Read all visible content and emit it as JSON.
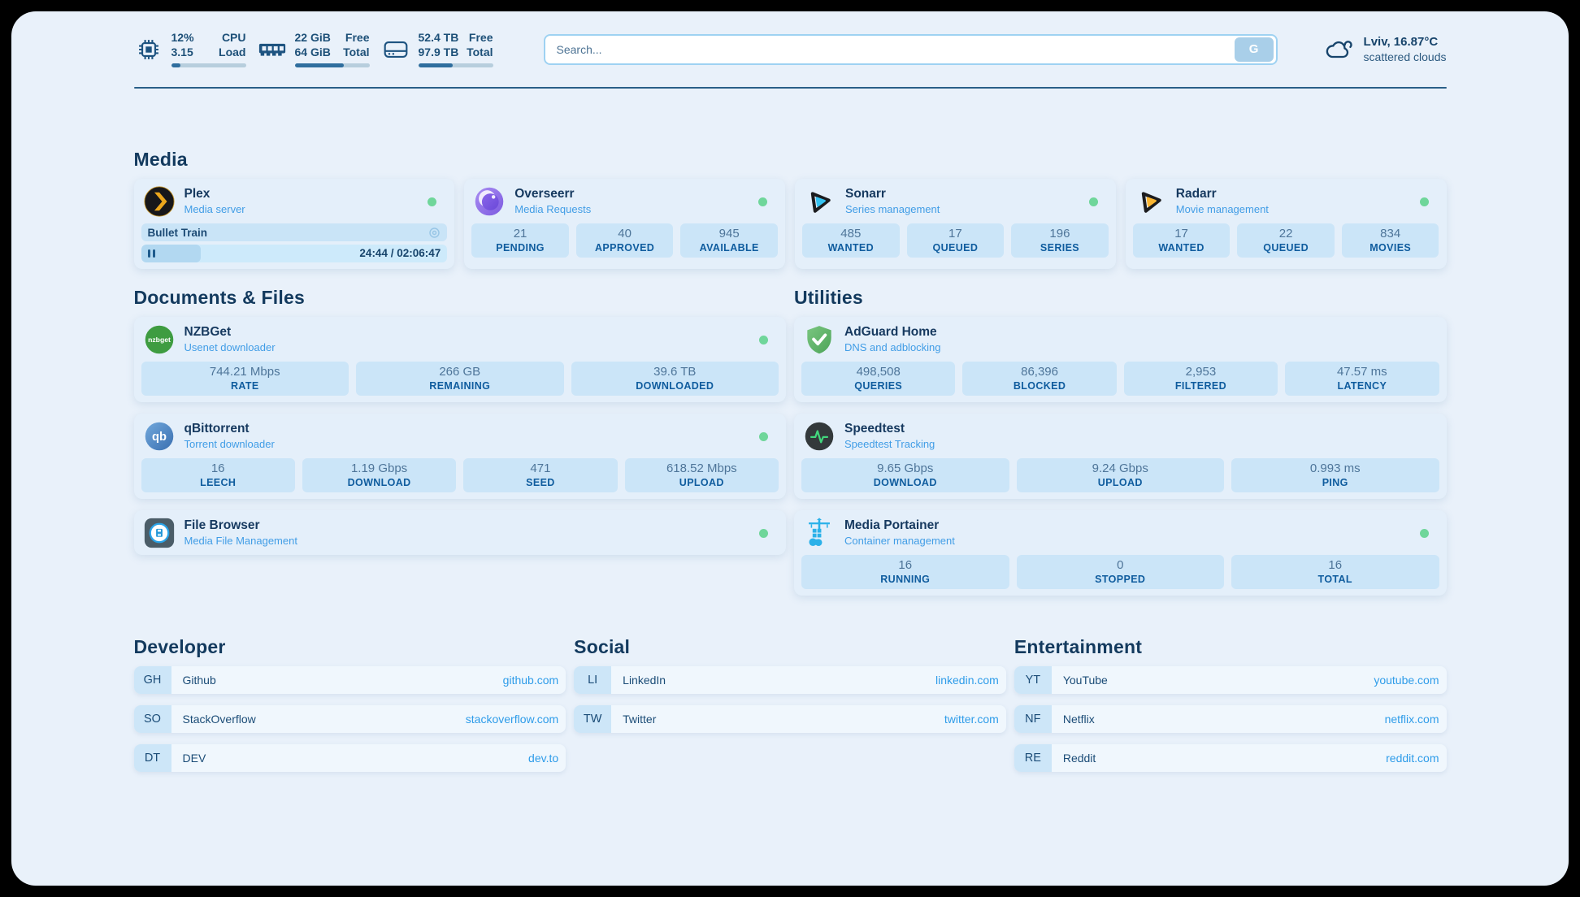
{
  "colors": {
    "status_online": "#6fd69a",
    "accent_blue": "#2e9ce9",
    "navy": "#133a5e"
  },
  "topbar": {
    "stats": [
      {
        "icon": "cpu-icon",
        "value_top": "12%",
        "value_bottom": "3.15",
        "label_top": "CPU",
        "label_bottom": "Load",
        "progress_pct": 12
      },
      {
        "icon": "ram-icon",
        "value_top": "22 GiB",
        "value_bottom": "64 GiB",
        "label_top": "Free",
        "label_bottom": "Total",
        "progress_pct": 66
      },
      {
        "icon": "disk-icon",
        "value_top": "52.4 TB",
        "value_bottom": "97.9 TB",
        "label_top": "Free",
        "label_bottom": "Total",
        "progress_pct": 46
      }
    ],
    "search": {
      "placeholder": "Search...",
      "button_label": "G"
    },
    "weather": {
      "icon": "cloud-icon",
      "summary": "Lviv, 16.87°C",
      "condition": "scattered clouds"
    }
  },
  "sections": {
    "media": {
      "title": "Media",
      "apps": [
        {
          "name": "Plex",
          "subtitle": "Media server",
          "icon": "plex-icon",
          "online": true,
          "now_playing": {
            "title": "Bullet Train",
            "time": "24:44 / 02:06:47",
            "progress_pct": 19.5
          }
        },
        {
          "name": "Overseerr",
          "subtitle": "Media Requests",
          "icon": "overseerr-icon",
          "online": true,
          "stats": [
            {
              "value": "21",
              "label": "PENDING"
            },
            {
              "value": "40",
              "label": "APPROVED"
            },
            {
              "value": "945",
              "label": "AVAILABLE"
            }
          ]
        },
        {
          "name": "Sonarr",
          "subtitle": "Series management",
          "icon": "sonarr-icon",
          "online": true,
          "stats": [
            {
              "value": "485",
              "label": "WANTED"
            },
            {
              "value": "17",
              "label": "QUEUED"
            },
            {
              "value": "196",
              "label": "SERIES"
            }
          ]
        },
        {
          "name": "Radarr",
          "subtitle": "Movie management",
          "icon": "radarr-icon",
          "online": true,
          "stats": [
            {
              "value": "17",
              "label": "WANTED"
            },
            {
              "value": "22",
              "label": "QUEUED"
            },
            {
              "value": "834",
              "label": "MOVIES"
            }
          ]
        }
      ]
    },
    "documents": {
      "title": "Documents & Files",
      "apps": [
        {
          "name": "NZBGet",
          "subtitle": "Usenet downloader",
          "icon": "nzbget-icon",
          "online": true,
          "stats": [
            {
              "value": "744.21 Mbps",
              "label": "RATE"
            },
            {
              "value": "266 GB",
              "label": "REMAINING"
            },
            {
              "value": "39.6 TB",
              "label": "DOWNLOADED"
            }
          ]
        },
        {
          "name": "qBittorrent",
          "subtitle": "Torrent downloader",
          "icon": "qbittorrent-icon",
          "online": true,
          "stats": [
            {
              "value": "16",
              "label": "LEECH"
            },
            {
              "value": "1.19 Gbps",
              "label": "DOWNLOAD"
            },
            {
              "value": "471",
              "label": "SEED"
            },
            {
              "value": "618.52 Mbps",
              "label": "UPLOAD"
            }
          ]
        },
        {
          "name": "File Browser",
          "subtitle": "Media File Management",
          "icon": "filebrowser-icon",
          "online": true
        }
      ]
    },
    "utilities": {
      "title": "Utilities",
      "apps": [
        {
          "name": "AdGuard Home",
          "subtitle": "DNS and adblocking",
          "icon": "adguard-icon",
          "stats": [
            {
              "value": "498,508",
              "label": "QUERIES"
            },
            {
              "value": "86,396",
              "label": "BLOCKED"
            },
            {
              "value": "2,953",
              "label": "FILTERED"
            },
            {
              "value": "47.57 ms",
              "label": "LATENCY"
            }
          ]
        },
        {
          "name": "Speedtest",
          "subtitle": "Speedtest Tracking",
          "icon": "speedtest-icon",
          "stats": [
            {
              "value": "9.65 Gbps",
              "label": "DOWNLOAD"
            },
            {
              "value": "9.24 Gbps",
              "label": "UPLOAD"
            },
            {
              "value": "0.993 ms",
              "label": "PING"
            }
          ]
        },
        {
          "name": "Media Portainer",
          "subtitle": "Container management",
          "icon": "portainer-icon",
          "online": true,
          "stats": [
            {
              "value": "16",
              "label": "RUNNING"
            },
            {
              "value": "0",
              "label": "STOPPED"
            },
            {
              "value": "16",
              "label": "TOTAL"
            }
          ]
        }
      ]
    },
    "links": [
      {
        "title": "Developer",
        "items": [
          {
            "abbr": "GH",
            "name": "Github",
            "domain": "github.com"
          },
          {
            "abbr": "SO",
            "name": "StackOverflow",
            "domain": "stackoverflow.com"
          },
          {
            "abbr": "DT",
            "name": "DEV",
            "domain": "dev.to"
          }
        ]
      },
      {
        "title": "Social",
        "items": [
          {
            "abbr": "LI",
            "name": "LinkedIn",
            "domain": "linkedin.com"
          },
          {
            "abbr": "TW",
            "name": "Twitter",
            "domain": "twitter.com"
          }
        ]
      },
      {
        "title": "Entertainment",
        "items": [
          {
            "abbr": "YT",
            "name": "YouTube",
            "domain": "youtube.com"
          },
          {
            "abbr": "NF",
            "name": "Netflix",
            "domain": "netflix.com"
          },
          {
            "abbr": "RE",
            "name": "Reddit",
            "domain": "reddit.com"
          }
        ]
      }
    ]
  }
}
